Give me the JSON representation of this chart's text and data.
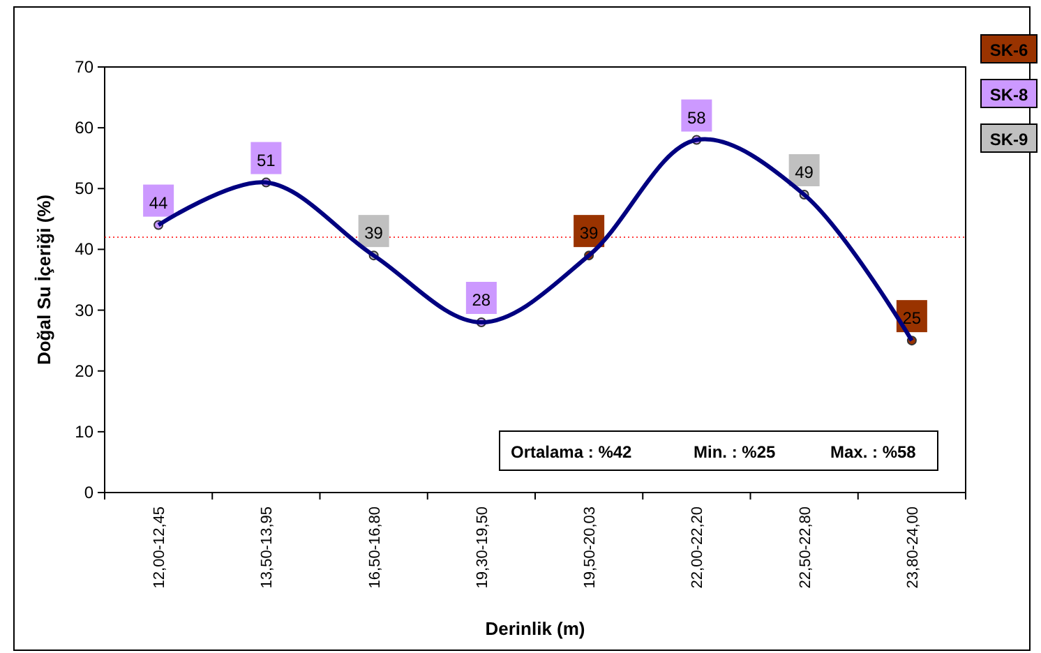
{
  "chart_data": {
    "type": "line",
    "xlabel": "Derinlik (m)",
    "ylabel": "Doğal Su İçeriği (%)",
    "categories": [
      "12,00-12,45",
      "13,50-13,95",
      "16,50-16,80",
      "19,30-19,50",
      "19,50-20,03",
      "22,00-22,20",
      "22,50-22,80",
      "23,80-24,00"
    ],
    "series": [
      {
        "color": "#000080",
        "values": [
          44,
          51,
          39,
          28,
          39,
          58,
          49,
          25
        ]
      },
      {
        "type": "scatter",
        "name": "SK-6",
        "color": "#993300",
        "marker": "circle",
        "values": [
          null,
          null,
          null,
          null,
          39,
          null,
          null,
          25
        ],
        "value_labels": [
          null,
          null,
          null,
          null,
          "39",
          null,
          null,
          "25"
        ]
      },
      {
        "type": "scatter",
        "name": "SK-8",
        "color": "#cc99ff",
        "marker": "circle",
        "values": [
          44,
          51,
          null,
          28,
          null,
          58,
          null,
          null
        ],
        "value_labels": [
          "44",
          "51",
          null,
          "28",
          null,
          "58",
          null,
          null
        ]
      },
      {
        "type": "scatter",
        "name": "SK-9",
        "color": "#c0c0c0",
        "marker": "circle",
        "values": [
          null,
          null,
          39,
          null,
          null,
          null,
          49,
          null
        ],
        "value_labels": [
          null,
          null,
          "39",
          null,
          null,
          null,
          "49",
          null
        ]
      }
    ],
    "ylim": [
      0,
      70
    ],
    "yticks": [
      0,
      10,
      20,
      30,
      40,
      50,
      60,
      70
    ],
    "grid": false,
    "legend": "right",
    "line_style": "solid",
    "ref_lines": [
      {
        "axis": "y",
        "value": 42,
        "color": "#ff0000",
        "line_style": "dotted"
      }
    ],
    "annotations": [
      "Ortalama : %42",
      "Min. : %25",
      "Max. : %58"
    ]
  }
}
